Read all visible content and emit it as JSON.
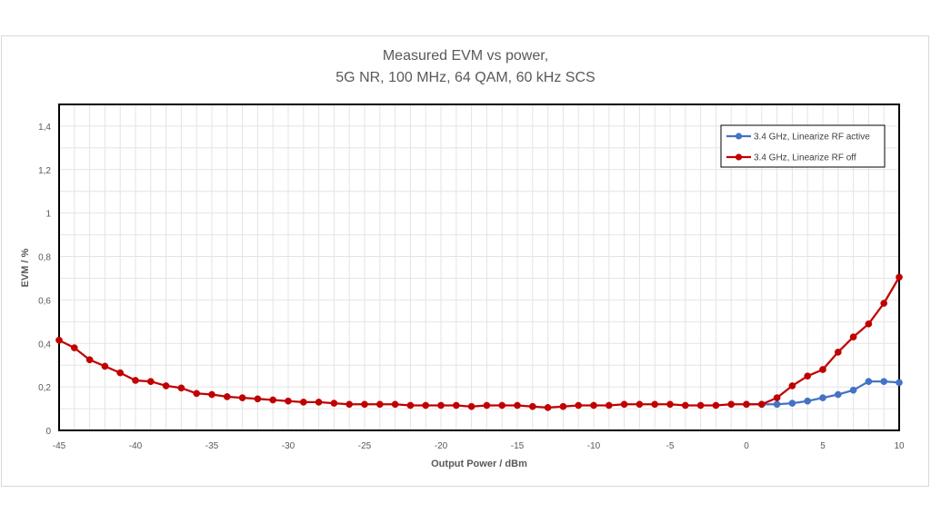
{
  "chart_data": {
    "type": "line",
    "title": [
      "Measured EVM vs power,",
      "5G NR, 100 MHz, 64 QAM, 60 kHz SCS"
    ],
    "xlabel": "Output Power / dBm",
    "ylabel": "EVM / %",
    "xlim": [
      -45,
      10
    ],
    "ylim": [
      0,
      1.5
    ],
    "xticks": [
      -45,
      -40,
      -35,
      -30,
      -25,
      -20,
      -15,
      -10,
      -5,
      0,
      5,
      10
    ],
    "xtick_labels": [
      "-45",
      "-40",
      "-35",
      "-30",
      "-25",
      "-20",
      "-15",
      "-10",
      "-5",
      "0",
      "5",
      "10"
    ],
    "yticks": [
      0,
      0.2,
      0.4,
      0.6,
      0.8,
      1,
      1.2,
      1.4
    ],
    "ytick_labels": [
      "0",
      "0,2",
      "0,4",
      "0,6",
      "0,8",
      "1",
      "1,2",
      "1,4"
    ],
    "grid": true,
    "legend_position": "top-right",
    "series": [
      {
        "name": "3.4 GHz, Linearize RF active",
        "color": "#4472c4",
        "x": [
          0,
          1,
          2,
          3,
          4,
          5,
          6,
          7,
          8,
          9,
          10
        ],
        "y": [
          0.12,
          0.12,
          0.12,
          0.125,
          0.135,
          0.15,
          0.165,
          0.185,
          0.225,
          0.225,
          0.22
        ]
      },
      {
        "name": "3.4 GHz, Linearize RF off",
        "color": "#c00000",
        "x": [
          -45,
          -44,
          -43,
          -42,
          -41,
          -40,
          -39,
          -38,
          -37,
          -36,
          -35,
          -34,
          -33,
          -32,
          -31,
          -30,
          -29,
          -28,
          -27,
          -26,
          -25,
          -24,
          -23,
          -22,
          -21,
          -20,
          -19,
          -18,
          -17,
          -16,
          -15,
          -14,
          -13,
          -12,
          -11,
          -10,
          -9,
          -8,
          -7,
          -6,
          -5,
          -4,
          -3,
          -2,
          -1,
          0,
          1,
          2,
          3,
          4,
          5,
          6,
          7,
          8,
          9,
          10
        ],
        "y": [
          0.415,
          0.38,
          0.325,
          0.295,
          0.265,
          0.23,
          0.225,
          0.205,
          0.195,
          0.17,
          0.165,
          0.155,
          0.15,
          0.145,
          0.14,
          0.135,
          0.13,
          0.13,
          0.125,
          0.12,
          0.12,
          0.12,
          0.12,
          0.115,
          0.115,
          0.115,
          0.115,
          0.11,
          0.115,
          0.115,
          0.115,
          0.11,
          0.105,
          0.11,
          0.115,
          0.115,
          0.115,
          0.12,
          0.12,
          0.12,
          0.12,
          0.115,
          0.115,
          0.115,
          0.12,
          0.12,
          0.12,
          0.15,
          0.205,
          0.25,
          0.28,
          0.36,
          0.43,
          0.49,
          0.585,
          0.705
        ]
      }
    ]
  }
}
